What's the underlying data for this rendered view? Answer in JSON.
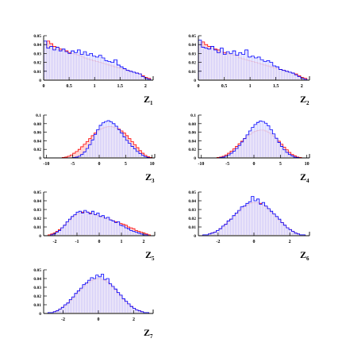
{
  "colors": {
    "red": "#ff0000",
    "blue": "#0000ff",
    "axis": "#000000"
  },
  "chart_data": [
    {
      "type": "histogram",
      "xlabel": "Z1",
      "xlabel_main": "Z",
      "xlabel_sub": "1",
      "xlim": [
        0,
        2.15
      ],
      "ylim": [
        0,
        0.05
      ],
      "xticks": [
        0,
        0.5,
        1,
        1.5,
        2
      ],
      "xtick_labels": [
        "0",
        "0.5",
        "1",
        "1.5",
        "2"
      ],
      "yticks": [
        0,
        0.01,
        0.02,
        0.03,
        0.04,
        0.05
      ],
      "ytick_labels": [
        "0",
        "0.01",
        "0.02",
        "0.03",
        "0.04",
        "0.05"
      ],
      "bin_edges": [
        0,
        2.1
      ],
      "series": [
        {
          "color": "red",
          "values": [
            0.04,
            0.044,
            0.041,
            0.038,
            0.037,
            0.035,
            0.034,
            0.033,
            0.031,
            0.03,
            0.029,
            0.028,
            0.027,
            0.025,
            0.024,
            0.023,
            0.022,
            0.021,
            0.02,
            0.019,
            0.018,
            0.017,
            0.016,
            0.015,
            0.014,
            0.013,
            0.012,
            0.011,
            0.01,
            0.009,
            0.008,
            0.007,
            0.005,
            0.003,
            0.002
          ]
        },
        {
          "color": "blue",
          "values": [
            0.044,
            0.036,
            0.038,
            0.034,
            0.037,
            0.033,
            0.035,
            0.032,
            0.03,
            0.033,
            0.031,
            0.034,
            0.029,
            0.032,
            0.028,
            0.03,
            0.027,
            0.026,
            0.028,
            0.025,
            0.022,
            0.021,
            0.02,
            0.023,
            0.017,
            0.015,
            0.013,
            0.011,
            0.01,
            0.009,
            0.008,
            0.007,
            0.004,
            0.002,
            0.001
          ]
        }
      ]
    },
    {
      "type": "histogram",
      "xlabel": "Z2",
      "xlabel_main": "Z",
      "xlabel_sub": "2",
      "xlim": [
        0,
        2.15
      ],
      "ylim": [
        0,
        0.05
      ],
      "xticks": [
        0,
        0.5,
        1,
        1.5,
        2
      ],
      "xtick_labels": [
        "0",
        "0.5",
        "1",
        "1.5",
        "2"
      ],
      "yticks": [
        0,
        0.01,
        0.02,
        0.03,
        0.04,
        0.05
      ],
      "ytick_labels": [
        "0",
        "0.01",
        "0.02",
        "0.03",
        "0.04",
        "0.05"
      ],
      "bin_edges": [
        0,
        2.1
      ],
      "series": [
        {
          "color": "red",
          "values": [
            0.04,
            0.043,
            0.04,
            0.038,
            0.036,
            0.035,
            0.034,
            0.032,
            0.031,
            0.03,
            0.029,
            0.028,
            0.027,
            0.025,
            0.024,
            0.023,
            0.022,
            0.021,
            0.02,
            0.019,
            0.018,
            0.017,
            0.016,
            0.015,
            0.014,
            0.013,
            0.012,
            0.011,
            0.01,
            0.009,
            0.008,
            0.007,
            0.005,
            0.003,
            0.002
          ]
        },
        {
          "color": "blue",
          "values": [
            0.045,
            0.037,
            0.036,
            0.035,
            0.038,
            0.034,
            0.031,
            0.036,
            0.029,
            0.032,
            0.03,
            0.033,
            0.028,
            0.031,
            0.029,
            0.034,
            0.026,
            0.027,
            0.025,
            0.026,
            0.023,
            0.021,
            0.022,
            0.02,
            0.016,
            0.015,
            0.012,
            0.011,
            0.01,
            0.009,
            0.008,
            0.006,
            0.004,
            0.002,
            0.001
          ]
        }
      ]
    },
    {
      "type": "histogram",
      "xlabel": "Z3",
      "xlabel_main": "Z",
      "xlabel_sub": "3",
      "xlim": [
        -10.5,
        10.5
      ],
      "ylim": [
        0,
        0.1
      ],
      "xticks": [
        -10,
        -5,
        0,
        5,
        10
      ],
      "xtick_labels": [
        "-10",
        "-5",
        "0",
        "5",
        "10"
      ],
      "yticks": [
        0,
        0.02,
        0.04,
        0.06,
        0.08,
        0.1
      ],
      "ytick_labels": [
        "0",
        "0.02",
        "0.04",
        "0.06",
        "0.08",
        "0.1"
      ],
      "bin_edges": [
        -10,
        10
      ],
      "series": [
        {
          "color": "red",
          "values": [
            0,
            0,
            0,
            0,
            0,
            0,
            0.001,
            0.002,
            0.004,
            0.007,
            0.011,
            0.015,
            0.02,
            0.026,
            0.032,
            0.038,
            0.045,
            0.052,
            0.058,
            0.063,
            0.067,
            0.07,
            0.072,
            0.073,
            0.073,
            0.072,
            0.07,
            0.067,
            0.063,
            0.058,
            0.052,
            0.045,
            0.038,
            0.031,
            0.024,
            0.017,
            0.011,
            0.006,
            0.003,
            0.001
          ]
        },
        {
          "color": "blue",
          "values": [
            0,
            0,
            0,
            0,
            0,
            0,
            0,
            0,
            0,
            0,
            0.001,
            0.002,
            0.004,
            0.008,
            0.014,
            0.022,
            0.031,
            0.042,
            0.055,
            0.066,
            0.076,
            0.082,
            0.085,
            0.087,
            0.084,
            0.08,
            0.074,
            0.066,
            0.058,
            0.049,
            0.041,
            0.034,
            0.027,
            0.021,
            0.015,
            0.01,
            0.006,
            0.003,
            0.001,
            0
          ]
        }
      ]
    },
    {
      "type": "histogram",
      "xlabel": "Z4",
      "xlabel_main": "Z",
      "xlabel_sub": "4",
      "xlim": [
        -10.5,
        10.5
      ],
      "ylim": [
        0,
        0.1
      ],
      "xticks": [
        -10,
        -5,
        0,
        5,
        10
      ],
      "xtick_labels": [
        "-10",
        "-5",
        "0",
        "5",
        "10"
      ],
      "yticks": [
        0,
        0.02,
        0.04,
        0.06,
        0.08,
        0.1
      ],
      "ytick_labels": [
        "0",
        "0.02",
        "0.04",
        "0.06",
        "0.08",
        "0.1"
      ],
      "bin_edges": [
        -10,
        10
      ],
      "series": [
        {
          "color": "red",
          "values": [
            0,
            0,
            0,
            0,
            0,
            0,
            0.001,
            0.002,
            0.004,
            0.007,
            0.011,
            0.016,
            0.021,
            0.027,
            0.033,
            0.039,
            0.045,
            0.05,
            0.055,
            0.059,
            0.062,
            0.064,
            0.065,
            0.065,
            0.063,
            0.06,
            0.056,
            0.051,
            0.045,
            0.039,
            0.032,
            0.025,
            0.019,
            0.013,
            0.008,
            0.005,
            0.002,
            0.001,
            0,
            0
          ]
        },
        {
          "color": "blue",
          "values": [
            0,
            0,
            0,
            0,
            0,
            0,
            0,
            0.001,
            0.002,
            0.004,
            0.007,
            0.011,
            0.016,
            0.022,
            0.029,
            0.037,
            0.045,
            0.054,
            0.063,
            0.071,
            0.078,
            0.083,
            0.086,
            0.085,
            0.081,
            0.075,
            0.066,
            0.056,
            0.046,
            0.036,
            0.027,
            0.019,
            0.013,
            0.008,
            0.005,
            0.002,
            0.001,
            0,
            0,
            0
          ]
        }
      ]
    },
    {
      "type": "histogram",
      "xlabel": "Z5",
      "xlabel_main": "Z",
      "xlabel_sub": "5",
      "xlim": [
        -2.5,
        2.5
      ],
      "ylim": [
        0,
        0.05
      ],
      "xticks": [
        -2,
        -1,
        0,
        1,
        2
      ],
      "xtick_labels": [
        "-2",
        "-1",
        "0",
        "1",
        "2"
      ],
      "yticks": [
        0,
        0.01,
        0.02,
        0.03,
        0.04,
        0.05
      ],
      "ytick_labels": [
        "0",
        "0.01",
        "0.02",
        "0.03",
        "0.04",
        "0.05"
      ],
      "bin_edges": [
        -2.3,
        2.3
      ],
      "series": [
        {
          "color": "red",
          "values": [
            0.001,
            0.002,
            0.003,
            0.005,
            0.007,
            0.009,
            0.012,
            0.015,
            0.018,
            0.021,
            0.023,
            0.025,
            0.026,
            0.027,
            0.027,
            0.027,
            0.026,
            0.025,
            0.024,
            0.023,
            0.022,
            0.021,
            0.02,
            0.019,
            0.018,
            0.017,
            0.016,
            0.015,
            0.014,
            0.013,
            0.012,
            0.01,
            0.009,
            0.008,
            0.006,
            0.005,
            0.004,
            0.003,
            0.002,
            0.001
          ]
        },
        {
          "color": "blue",
          "values": [
            0.0,
            0.001,
            0.002,
            0.004,
            0.006,
            0.009,
            0.012,
            0.016,
            0.019,
            0.022,
            0.024,
            0.027,
            0.028,
            0.026,
            0.029,
            0.027,
            0.025,
            0.028,
            0.024,
            0.026,
            0.022,
            0.023,
            0.02,
            0.021,
            0.018,
            0.017,
            0.015,
            0.016,
            0.012,
            0.011,
            0.009,
            0.008,
            0.006,
            0.005,
            0.004,
            0.003,
            0.002,
            0.001,
            0.001,
            0
          ]
        }
      ]
    },
    {
      "type": "histogram",
      "xlabel": "Z6",
      "xlabel_main": "Z",
      "xlabel_sub": "6",
      "xlim": [
        -3.1,
        3.1
      ],
      "ylim": [
        0,
        0.05
      ],
      "xticks": [
        -2,
        0,
        2
      ],
      "xtick_labels": [
        "-2",
        "0",
        "2"
      ],
      "yticks": [
        0,
        0.01,
        0.02,
        0.03,
        0.04,
        0.05
      ],
      "ytick_labels": [
        "0",
        "0.01",
        "0.02",
        "0.03",
        "0.04",
        "0.05"
      ],
      "bin_edges": [
        -3,
        3
      ],
      "series": [
        {
          "color": "red",
          "values": [
            0,
            0.001,
            0.001,
            0.002,
            0.003,
            0.004,
            0.006,
            0.008,
            0.01,
            0.013,
            0.016,
            0.019,
            0.022,
            0.025,
            0.028,
            0.031,
            0.033,
            0.035,
            0.037,
            0.038,
            0.038,
            0.038,
            0.037,
            0.035,
            0.033,
            0.03,
            0.027,
            0.024,
            0.021,
            0.018,
            0.015,
            0.012,
            0.009,
            0.007,
            0.005,
            0.003,
            0.002,
            0.001,
            0.001,
            0
          ]
        },
        {
          "color": "blue",
          "values": [
            0,
            0.001,
            0.001,
            0.002,
            0.003,
            0.004,
            0.006,
            0.008,
            0.011,
            0.013,
            0.017,
            0.019,
            0.023,
            0.026,
            0.029,
            0.033,
            0.034,
            0.037,
            0.039,
            0.045,
            0.04,
            0.042,
            0.036,
            0.038,
            0.034,
            0.031,
            0.028,
            0.025,
            0.022,
            0.019,
            0.015,
            0.012,
            0.009,
            0.007,
            0.005,
            0.003,
            0.002,
            0.001,
            0.001,
            0
          ]
        }
      ]
    },
    {
      "type": "histogram",
      "xlabel": "Z7",
      "xlabel_main": "Z",
      "xlabel_sub": "7",
      "xlim": [
        -3.1,
        3.1
      ],
      "ylim": [
        0,
        0.05
      ],
      "xticks": [
        -2,
        0,
        2
      ],
      "xtick_labels": [
        "-2",
        "0",
        "2"
      ],
      "yticks": [
        0,
        0.01,
        0.02,
        0.03,
        0.04,
        0.05
      ],
      "ytick_labels": [
        "0",
        "0.01",
        "0.02",
        "0.03",
        "0.04",
        "0.05"
      ],
      "bin_edges": [
        -3,
        3
      ],
      "series": [
        {
          "color": "red",
          "values": [
            0,
            0.001,
            0.001,
            0.002,
            0.003,
            0.005,
            0.007,
            0.009,
            0.012,
            0.015,
            0.018,
            0.022,
            0.025,
            0.028,
            0.031,
            0.034,
            0.036,
            0.038,
            0.039,
            0.04,
            0.04,
            0.039,
            0.038,
            0.036,
            0.033,
            0.03,
            0.027,
            0.023,
            0.02,
            0.016,
            0.013,
            0.01,
            0.008,
            0.006,
            0.004,
            0.003,
            0.002,
            0.001,
            0.001,
            0
          ]
        },
        {
          "color": "blue",
          "values": [
            0,
            0.001,
            0.001,
            0.002,
            0.003,
            0.005,
            0.007,
            0.01,
            0.012,
            0.016,
            0.019,
            0.023,
            0.026,
            0.029,
            0.033,
            0.035,
            0.038,
            0.041,
            0.04,
            0.044,
            0.042,
            0.045,
            0.039,
            0.04,
            0.034,
            0.031,
            0.028,
            0.024,
            0.021,
            0.017,
            0.014,
            0.011,
            0.008,
            0.006,
            0.004,
            0.003,
            0.002,
            0.001,
            0.001,
            0
          ]
        }
      ]
    }
  ]
}
